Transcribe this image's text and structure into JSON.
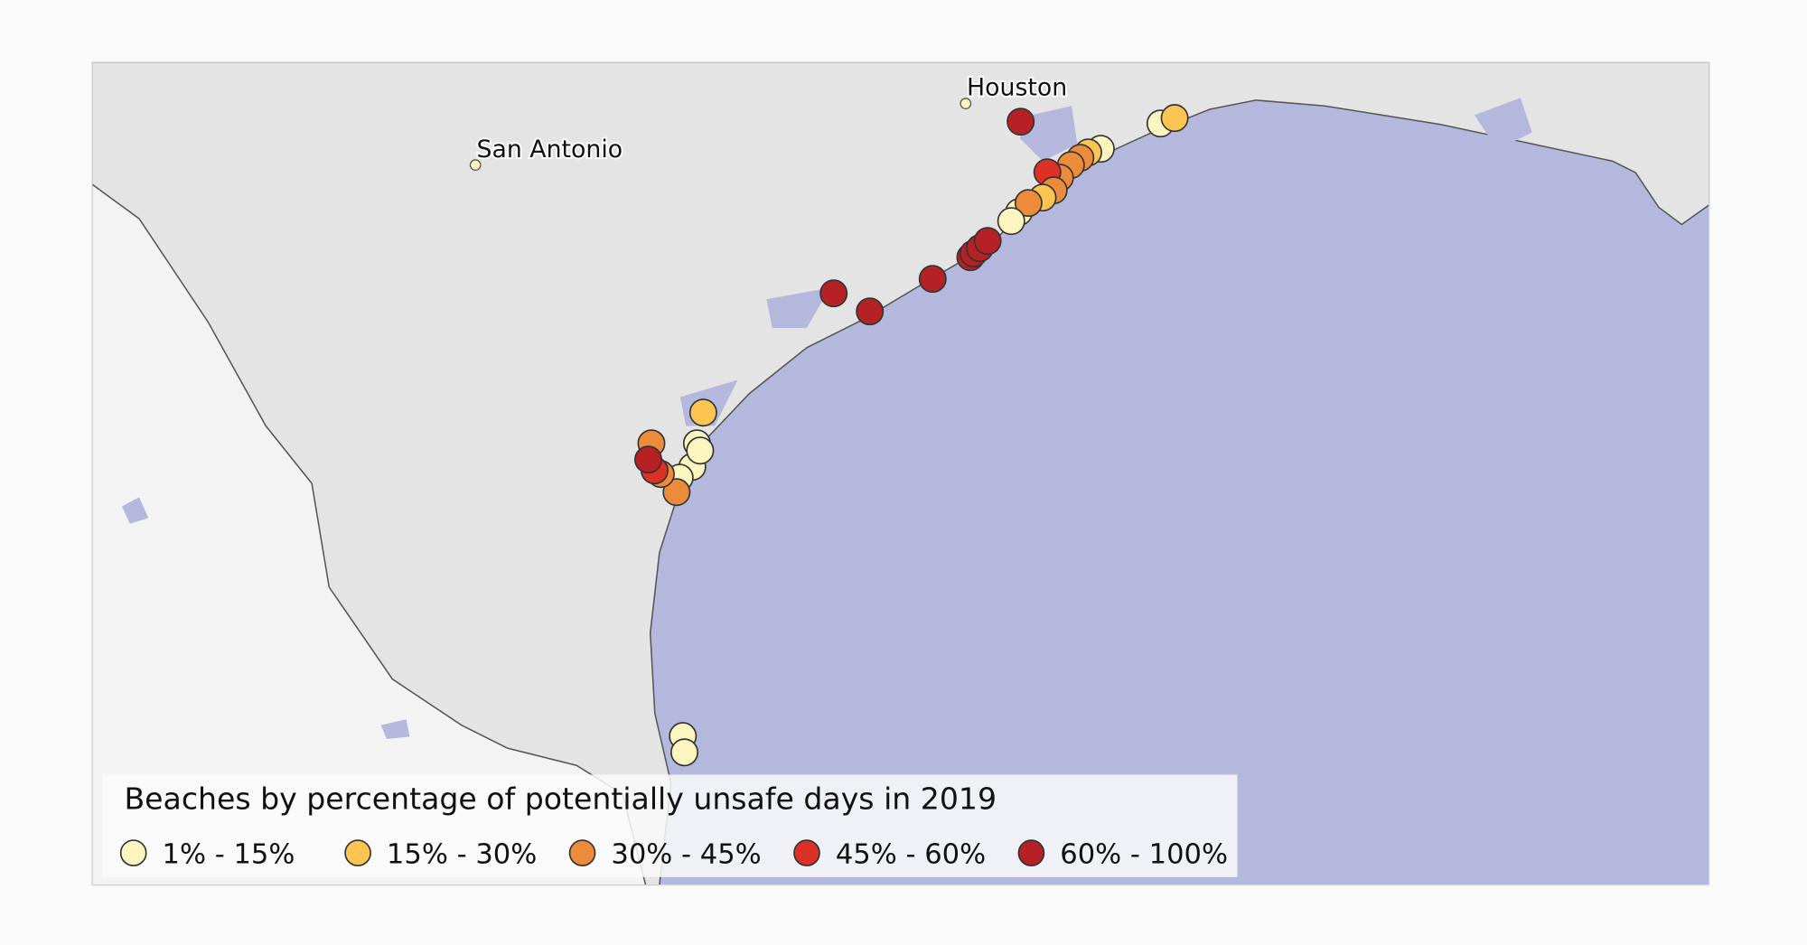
{
  "map": {
    "cities": [
      {
        "name": "Houston",
        "lon": -95.37,
        "lat": 29.76
      },
      {
        "name": "San Antonio",
        "lon": -98.49,
        "lat": 29.42
      }
    ],
    "colors": {
      "land": "#e4e4e4",
      "mexico": "#f3f3f3",
      "water": "#b3b8dc",
      "border": "#555555"
    }
  },
  "legend": {
    "title": "Beaches by percentage of potentially unsafe days in 2019",
    "categories": [
      {
        "label": "1% - 15%",
        "color": "#fdf5bf"
      },
      {
        "label": "15% - 30%",
        "color": "#fcc552"
      },
      {
        "label": "30% - 45%",
        "color": "#ec8b3a"
      },
      {
        "label": "45% - 60%",
        "color": "#dd3127"
      },
      {
        "label": "60% - 100%",
        "color": "#b62126"
      }
    ]
  },
  "beaches": [
    {
      "lon": -95.02,
      "lat": 29.66,
      "cat": 4
    },
    {
      "lon": -94.13,
      "lat": 29.65,
      "cat": 0
    },
    {
      "lon": -94.04,
      "lat": 29.68,
      "cat": 1
    },
    {
      "lon": -94.51,
      "lat": 29.51,
      "cat": 0
    },
    {
      "lon": -94.59,
      "lat": 29.49,
      "cat": 1
    },
    {
      "lon": -94.64,
      "lat": 29.46,
      "cat": 2
    },
    {
      "lon": -94.7,
      "lat": 29.42,
      "cat": 2
    },
    {
      "lon": -94.77,
      "lat": 29.35,
      "cat": 2
    },
    {
      "lon": -94.85,
      "lat": 29.38,
      "cat": 3
    },
    {
      "lon": -94.81,
      "lat": 29.28,
      "cat": 2
    },
    {
      "lon": -94.88,
      "lat": 29.24,
      "cat": 1
    },
    {
      "lon": -95.03,
      "lat": 29.16,
      "cat": 0
    },
    {
      "lon": -94.97,
      "lat": 29.21,
      "cat": 2
    },
    {
      "lon": -95.08,
      "lat": 29.11,
      "cat": 0
    },
    {
      "lon": -95.34,
      "lat": 28.91,
      "cat": 4
    },
    {
      "lon": -95.32,
      "lat": 28.93,
      "cat": 4
    },
    {
      "lon": -95.28,
      "lat": 28.96,
      "cat": 4
    },
    {
      "lon": -95.23,
      "lat": 29.0,
      "cat": 4
    },
    {
      "lon": -95.58,
      "lat": 28.79,
      "cat": 4
    },
    {
      "lon": -95.98,
      "lat": 28.61,
      "cat": 4
    },
    {
      "lon": -96.21,
      "lat": 28.71,
      "cat": 4
    },
    {
      "lon": -97.04,
      "lat": 28.05,
      "cat": 1
    },
    {
      "lon": -97.11,
      "lat": 27.75,
      "cat": 0
    },
    {
      "lon": -97.08,
      "lat": 27.88,
      "cat": 0
    },
    {
      "lon": -97.06,
      "lat": 27.84,
      "cat": 0
    },
    {
      "lon": -97.19,
      "lat": 27.69,
      "cat": 0
    },
    {
      "lon": -97.21,
      "lat": 27.61,
      "cat": 2
    },
    {
      "lon": -97.37,
      "lat": 27.88,
      "cat": 2
    },
    {
      "lon": -97.31,
      "lat": 27.71,
      "cat": 2
    },
    {
      "lon": -97.35,
      "lat": 27.73,
      "cat": 3
    },
    {
      "lon": -97.39,
      "lat": 27.79,
      "cat": 4
    },
    {
      "lon": -97.17,
      "lat": 26.26,
      "cat": 0
    },
    {
      "lon": -97.16,
      "lat": 26.17,
      "cat": 0
    }
  ]
}
